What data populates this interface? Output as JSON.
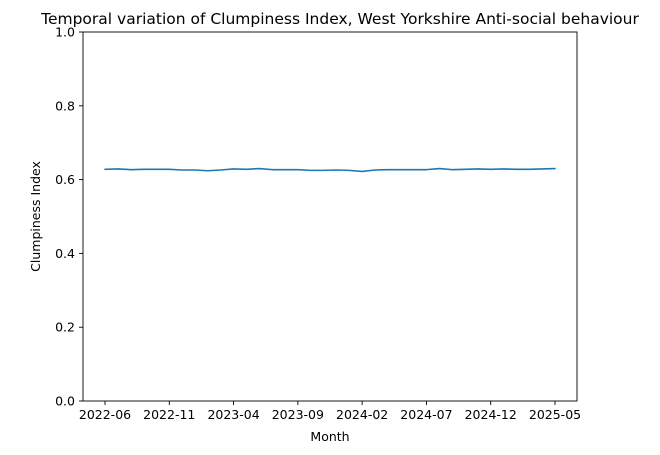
{
  "chart_data": {
    "type": "line",
    "title": "Temporal variation of Clumpiness Index, West Yorkshire Anti-social behaviour",
    "xlabel": "Month",
    "ylabel": "Clumpiness Index",
    "ylim": [
      0,
      1
    ],
    "yticks": [
      "0.0",
      "0.2",
      "0.4",
      "0.6",
      "0.8",
      "1.0"
    ],
    "xticks": [
      "2022-06",
      "2022-11",
      "2023-04",
      "2023-09",
      "2024-02",
      "2024-07",
      "2024-12",
      "2025-05"
    ],
    "grid": false,
    "line_color": "#1f77b4",
    "x": [
      "2022-06",
      "2022-07",
      "2022-08",
      "2022-09",
      "2022-10",
      "2022-11",
      "2022-12",
      "2023-01",
      "2023-02",
      "2023-03",
      "2023-04",
      "2023-05",
      "2023-06",
      "2023-07",
      "2023-08",
      "2023-09",
      "2023-10",
      "2023-11",
      "2023-12",
      "2024-01",
      "2024-02",
      "2024-03",
      "2024-04",
      "2024-05",
      "2024-06",
      "2024-07",
      "2024-08",
      "2024-09",
      "2024-10",
      "2024-11",
      "2024-12",
      "2025-01",
      "2025-02",
      "2025-03",
      "2025-04",
      "2025-05"
    ],
    "values": [
      0.628,
      0.629,
      0.627,
      0.628,
      0.628,
      0.628,
      0.626,
      0.626,
      0.624,
      0.626,
      0.629,
      0.628,
      0.63,
      0.627,
      0.627,
      0.627,
      0.625,
      0.625,
      0.626,
      0.625,
      0.622,
      0.626,
      0.627,
      0.627,
      0.627,
      0.627,
      0.63,
      0.627,
      0.628,
      0.629,
      0.628,
      0.629,
      0.628,
      0.628,
      0.629,
      0.63
    ]
  }
}
